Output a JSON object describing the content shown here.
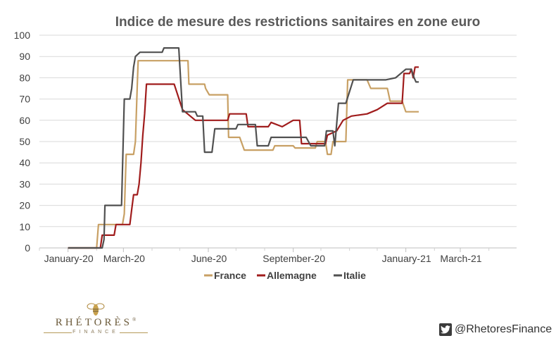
{
  "chart_data": {
    "type": "line",
    "title": "Indice de mesure des restrictions sanitaires en zone euro",
    "xlabel": "",
    "ylabel": "",
    "ylim": [
      0,
      100
    ],
    "yticks": [
      0,
      10,
      20,
      30,
      40,
      50,
      60,
      70,
      80,
      90,
      100
    ],
    "x_ticks": [
      "January-20",
      "March-20",
      "June-20",
      "September-20",
      "January-21",
      "March-21"
    ],
    "x_tick_dates": [
      "2020-01-01",
      "2020-03-01",
      "2020-06-01",
      "2020-09-01",
      "2021-01-01",
      "2021-03-01"
    ],
    "xlim": [
      "2019-12-01",
      "2021-05-01"
    ],
    "grid": true,
    "legend": "bottom",
    "series": [
      {
        "name": "France",
        "color": "#c8a064",
        "points": [
          [
            "2020-01-01",
            0
          ],
          [
            "2020-02-01",
            0
          ],
          [
            "2020-02-03",
            11
          ],
          [
            "2020-02-29",
            11
          ],
          [
            "2020-03-02",
            16
          ],
          [
            "2020-03-04",
            44
          ],
          [
            "2020-03-12",
            44
          ],
          [
            "2020-03-14",
            50
          ],
          [
            "2020-03-16",
            76
          ],
          [
            "2020-03-17",
            88
          ],
          [
            "2020-05-10",
            88
          ],
          [
            "2020-05-11",
            77
          ],
          [
            "2020-05-28",
            77
          ],
          [
            "2020-05-29",
            75
          ],
          [
            "2020-06-02",
            72
          ],
          [
            "2020-06-22",
            72
          ],
          [
            "2020-06-23",
            52
          ],
          [
            "2020-07-05",
            52
          ],
          [
            "2020-07-10",
            46
          ],
          [
            "2020-08-10",
            46
          ],
          [
            "2020-08-12",
            48
          ],
          [
            "2020-09-01",
            48
          ],
          [
            "2020-09-03",
            47
          ],
          [
            "2020-09-25",
            47
          ],
          [
            "2020-09-27",
            50
          ],
          [
            "2020-10-06",
            50
          ],
          [
            "2020-10-08",
            44
          ],
          [
            "2020-10-12",
            44
          ],
          [
            "2020-10-14",
            50
          ],
          [
            "2020-10-28",
            50
          ],
          [
            "2020-10-30",
            79
          ],
          [
            "2020-11-20",
            79
          ],
          [
            "2020-11-24",
            75
          ],
          [
            "2020-12-12",
            75
          ],
          [
            "2020-12-15",
            69
          ],
          [
            "2020-12-28",
            69
          ],
          [
            "2021-01-01",
            64
          ],
          [
            "2021-01-15",
            64
          ]
        ]
      },
      {
        "name": "Allemagne",
        "color": "#a01c1c",
        "points": [
          [
            "2020-01-01",
            0
          ],
          [
            "2020-02-05",
            0
          ],
          [
            "2020-02-07",
            6
          ],
          [
            "2020-02-20",
            6
          ],
          [
            "2020-02-22",
            11
          ],
          [
            "2020-03-08",
            11
          ],
          [
            "2020-03-10",
            18
          ],
          [
            "2020-03-12",
            25
          ],
          [
            "2020-03-16",
            25
          ],
          [
            "2020-03-18",
            30
          ],
          [
            "2020-03-20",
            40
          ],
          [
            "2020-03-22",
            53
          ],
          [
            "2020-03-24",
            63
          ],
          [
            "2020-03-26",
            77
          ],
          [
            "2020-04-25",
            77
          ],
          [
            "2020-05-04",
            65
          ],
          [
            "2020-05-18",
            60
          ],
          [
            "2020-06-22",
            60
          ],
          [
            "2020-06-24",
            63
          ],
          [
            "2020-07-12",
            63
          ],
          [
            "2020-07-14",
            57
          ],
          [
            "2020-08-05",
            57
          ],
          [
            "2020-08-08",
            59
          ],
          [
            "2020-08-20",
            57
          ],
          [
            "2020-09-01",
            60
          ],
          [
            "2020-09-08",
            60
          ],
          [
            "2020-09-10",
            49
          ],
          [
            "2020-10-06",
            49
          ],
          [
            "2020-10-08",
            53
          ],
          [
            "2020-10-18",
            55
          ],
          [
            "2020-10-25",
            60
          ],
          [
            "2020-11-03",
            62
          ],
          [
            "2020-11-20",
            63
          ],
          [
            "2020-12-01",
            65
          ],
          [
            "2020-12-12",
            68
          ],
          [
            "2020-12-28",
            68
          ],
          [
            "2020-12-30",
            82
          ],
          [
            "2021-01-05",
            82
          ],
          [
            "2021-01-07",
            84
          ],
          [
            "2021-01-09",
            80
          ],
          [
            "2021-01-11",
            85
          ],
          [
            "2021-01-15",
            85
          ]
        ]
      },
      {
        "name": "Italie",
        "color": "#505050",
        "points": [
          [
            "2020-01-01",
            0
          ],
          [
            "2020-02-07",
            0
          ],
          [
            "2020-02-09",
            4
          ],
          [
            "2020-02-10",
            20
          ],
          [
            "2020-02-28",
            20
          ],
          [
            "2020-03-02",
            70
          ],
          [
            "2020-03-08",
            70
          ],
          [
            "2020-03-10",
            75
          ],
          [
            "2020-03-12",
            85
          ],
          [
            "2020-03-14",
            90
          ],
          [
            "2020-03-19",
            92
          ],
          [
            "2020-04-12",
            92
          ],
          [
            "2020-04-14",
            94
          ],
          [
            "2020-04-30",
            94
          ],
          [
            "2020-05-04",
            64
          ],
          [
            "2020-05-18",
            64
          ],
          [
            "2020-05-20",
            62
          ],
          [
            "2020-05-26",
            62
          ],
          [
            "2020-05-28",
            45
          ],
          [
            "2020-06-05",
            45
          ],
          [
            "2020-06-08",
            56
          ],
          [
            "2020-07-01",
            56
          ],
          [
            "2020-07-03",
            58
          ],
          [
            "2020-07-22",
            58
          ],
          [
            "2020-07-24",
            48
          ],
          [
            "2020-08-05",
            48
          ],
          [
            "2020-08-08",
            52
          ],
          [
            "2020-09-15",
            52
          ],
          [
            "2020-09-20",
            48
          ],
          [
            "2020-10-05",
            48
          ],
          [
            "2020-10-07",
            55
          ],
          [
            "2020-10-14",
            55
          ],
          [
            "2020-10-16",
            48
          ],
          [
            "2020-10-20",
            68
          ],
          [
            "2020-10-28",
            68
          ],
          [
            "2020-11-05",
            79
          ],
          [
            "2020-12-10",
            79
          ],
          [
            "2020-12-21",
            80
          ],
          [
            "2021-01-01",
            84
          ],
          [
            "2021-01-07",
            84
          ],
          [
            "2021-01-10",
            80
          ],
          [
            "2021-01-12",
            78
          ],
          [
            "2021-01-15",
            78
          ]
        ]
      }
    ]
  },
  "logo": {
    "name": "RHÉTORÈS",
    "registered": "®",
    "sub": "FINANCE"
  },
  "twitter": {
    "icon": "twitter-icon",
    "handle": "@RhetoresFinance"
  }
}
